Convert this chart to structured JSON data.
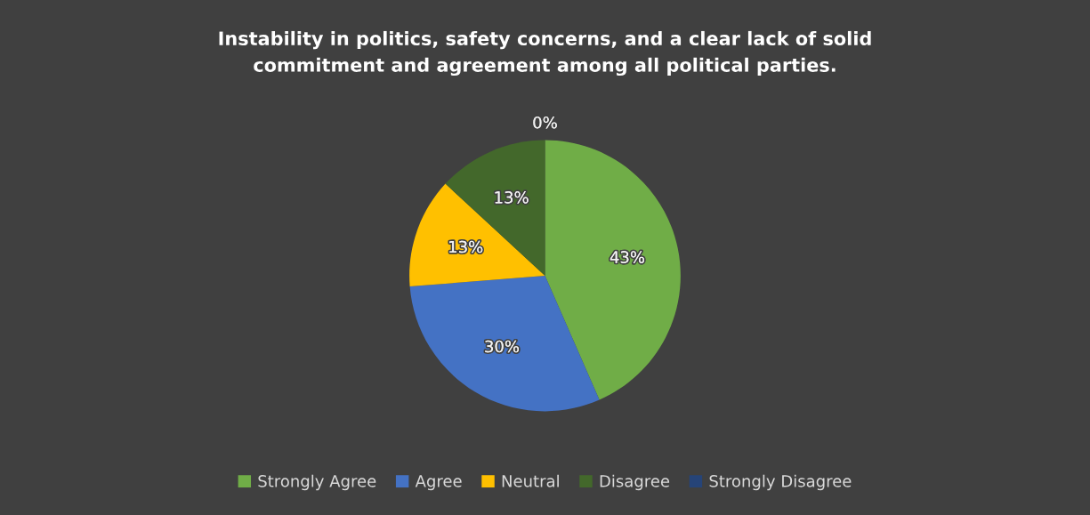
{
  "chart_data": {
    "type": "pie",
    "title": "Instability in politics, safety concerns, and a clear lack of solid\ncommitment and agreement among all political parties.",
    "categories": [
      "Strongly Agree",
      "Agree",
      "Neutral",
      "Disagree",
      "Strongly Disagree"
    ],
    "values": [
      43,
      30,
      13,
      13,
      0
    ],
    "colors": [
      "#70ad47",
      "#4472c4",
      "#ffc000",
      "#43682b",
      "#264478"
    ],
    "value_labels": [
      "43%",
      "30%",
      "13%",
      "13%",
      "0%"
    ],
    "legend": "bottom"
  }
}
